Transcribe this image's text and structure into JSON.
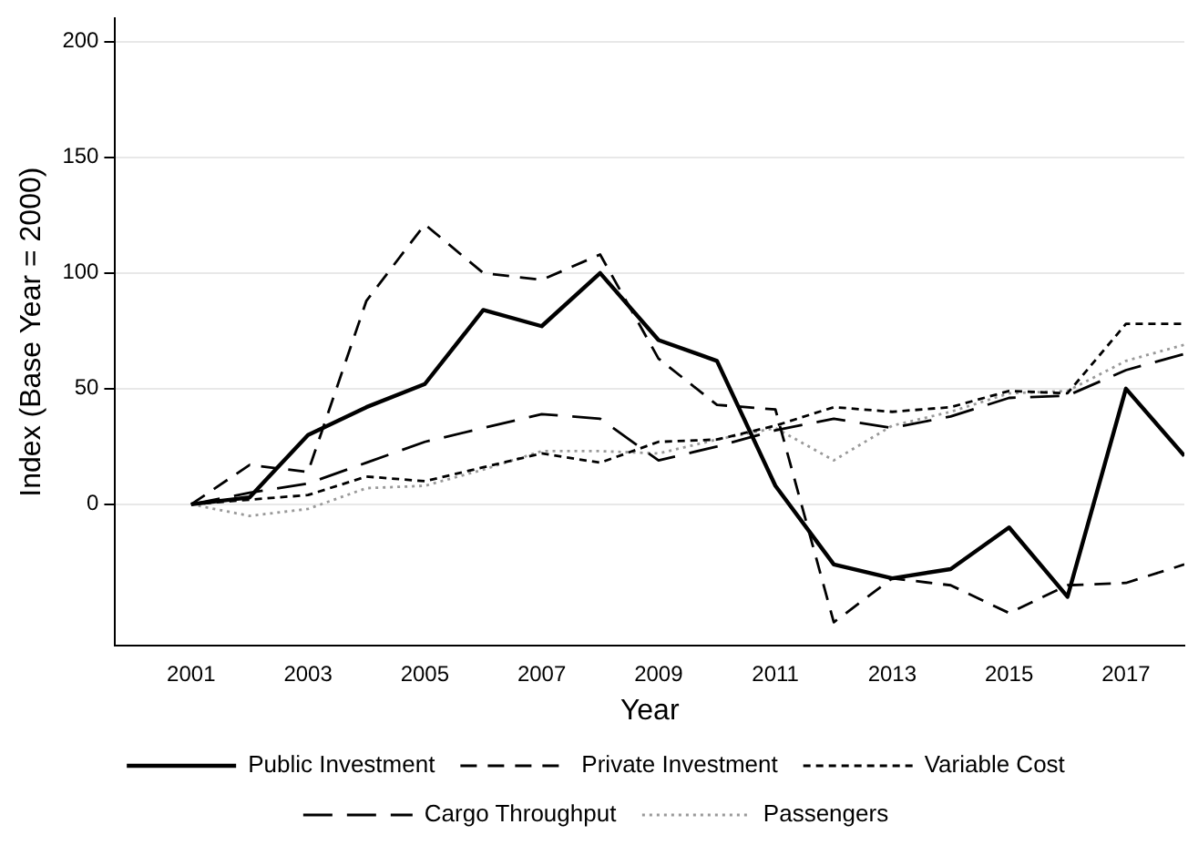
{
  "chart_data": {
    "type": "line",
    "xlabel": "Year",
    "ylabel": "Index (Base Year = 2000)",
    "x": [
      2001,
      2002,
      2003,
      2004,
      2005,
      2006,
      2007,
      2008,
      2009,
      2010,
      2011,
      2012,
      2013,
      2014,
      2015,
      2016,
      2017,
      2018
    ],
    "xlim": [
      1999.7,
      2018
    ],
    "xticks": [
      2001,
      2003,
      2005,
      2007,
      2009,
      2011,
      2013,
      2015,
      2017
    ],
    "ylim": [
      -61,
      210
    ],
    "yticks": [
      0,
      50,
      100,
      150,
      200
    ],
    "grid": "y",
    "legend": "bottom",
    "marker": "none",
    "series": [
      {
        "name": "Public Investment",
        "color": "#000000",
        "line_style": "solid",
        "values": [
          0,
          3,
          30,
          42,
          52,
          84,
          77,
          100,
          71,
          62,
          8,
          -26,
          -32,
          -28,
          -10,
          -40,
          50,
          21
        ]
      },
      {
        "name": "Private Investment",
        "color": "#000000",
        "line_style": "dashed",
        "values": [
          0,
          17,
          14,
          88,
          121,
          100,
          97,
          108,
          63,
          43,
          41,
          -51,
          -32,
          -35,
          -47,
          -35,
          -34,
          -26
        ]
      },
      {
        "name": "Variable Cost",
        "color": "#000000",
        "line_style": "short-dashed",
        "values": [
          0,
          2,
          4,
          12,
          10,
          16,
          22,
          18,
          27,
          28,
          34,
          42,
          40,
          42,
          49,
          48,
          78,
          78
        ]
      },
      {
        "name": "Cargo Throughput",
        "color": "#000000",
        "line_style": "long-dashed",
        "values": [
          0,
          5,
          9,
          18,
          27,
          33,
          39,
          37,
          19,
          25,
          32,
          37,
          33,
          38,
          46,
          47,
          58,
          65
        ]
      },
      {
        "name": "Passengers",
        "color": "#999999",
        "line_style": "dotted",
        "values": [
          0,
          -5,
          -2,
          7,
          8,
          15,
          23,
          23,
          22,
          28,
          33,
          19,
          34,
          40,
          48,
          49,
          62,
          69
        ]
      }
    ]
  }
}
